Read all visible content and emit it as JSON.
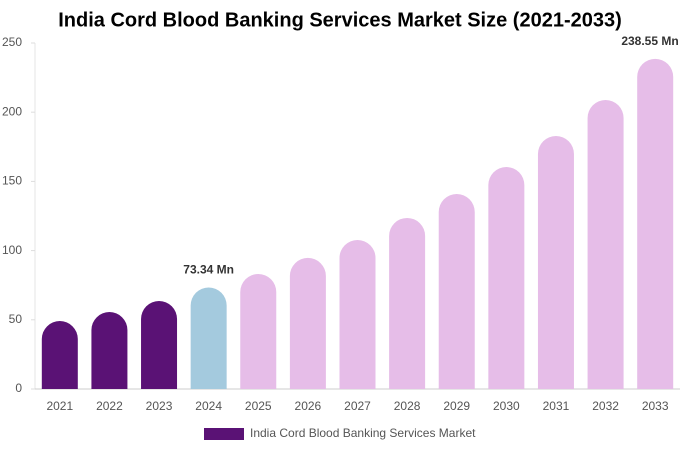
{
  "chart_data": {
    "type": "bar",
    "title": "India Cord Blood Banking Services Market Size (2021-2033)",
    "categories": [
      "2021",
      "2022",
      "2023",
      "2024",
      "2025",
      "2026",
      "2027",
      "2028",
      "2029",
      "2030",
      "2031",
      "2032",
      "2033"
    ],
    "series": [
      {
        "name": "India Cord Blood Banking Services Market",
        "color": "#5a1275",
        "values": [
          49.1,
          55.6,
          63.6,
          73.34,
          83.1,
          94.7,
          107.7,
          123.6,
          140.9,
          160.4,
          182.8,
          208.8,
          238.55
        ],
        "value_labels": [
          null,
          null,
          null,
          "73.34 Mn",
          null,
          null,
          null,
          null,
          null,
          null,
          null,
          null,
          "238.55 Mn"
        ],
        "colors": [
          "#5a1275",
          "#5a1275",
          "#5a1275",
          "#a4cade",
          "#e6bde8",
          "#e6bde8",
          "#e6bde8",
          "#e6bde8",
          "#e6bde8",
          "#e6bde8",
          "#e6bde8",
          "#e6bde8",
          "#e6bde8"
        ]
      }
    ],
    "ylim": [
      0,
      250
    ],
    "yticks": [
      0,
      50,
      100,
      150,
      200,
      250
    ],
    "grid": false
  }
}
